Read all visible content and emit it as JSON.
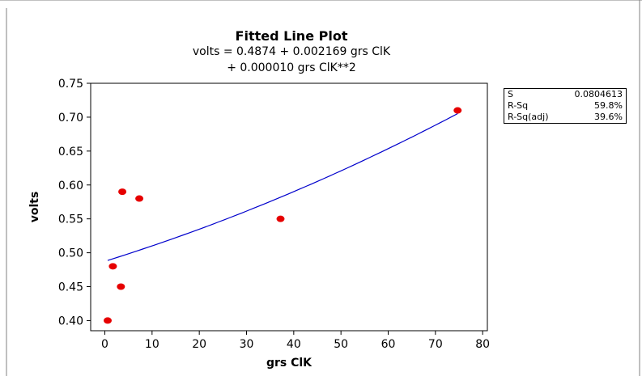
{
  "chart_data": {
    "type": "scatter",
    "title": "Fitted Line Plot",
    "subtitle_lines": [
      "volts =  0.4874 + 0.002169 grs ClK",
      "+ 0.000010 grs ClK**2"
    ],
    "xlabel": "grs ClK",
    "ylabel": "volts",
    "xlim": [
      -3,
      81
    ],
    "ylim": [
      0.385,
      0.75
    ],
    "x_ticks": [
      0,
      10,
      20,
      30,
      40,
      50,
      60,
      70,
      80
    ],
    "y_ticks": [
      "0.40",
      "0.45",
      "0.50",
      "0.55",
      "0.60",
      "0.65",
      "0.70",
      "0.75"
    ],
    "points": [
      {
        "x": 0.6,
        "y": 0.4
      },
      {
        "x": 1.7,
        "y": 0.48
      },
      {
        "x": 3.4,
        "y": 0.45
      },
      {
        "x": 3.7,
        "y": 0.59
      },
      {
        "x": 7.3,
        "y": 0.58
      },
      {
        "x": 37.2,
        "y": 0.55
      },
      {
        "x": 74.7,
        "y": 0.71
      }
    ],
    "fit": {
      "type": "quadratic",
      "coefficients": [
        0.4874,
        0.002169,
        1e-05
      ],
      "x_range": [
        0.6,
        74.7
      ],
      "color": "#0000cc"
    },
    "point_color": "#e60000",
    "grid": false
  },
  "stats": [
    {
      "label": "S",
      "value": "0.0804613"
    },
    {
      "label": "R-Sq",
      "value": "59.8%"
    },
    {
      "label": "R-Sq(adj)",
      "value": "39.6%"
    }
  ]
}
